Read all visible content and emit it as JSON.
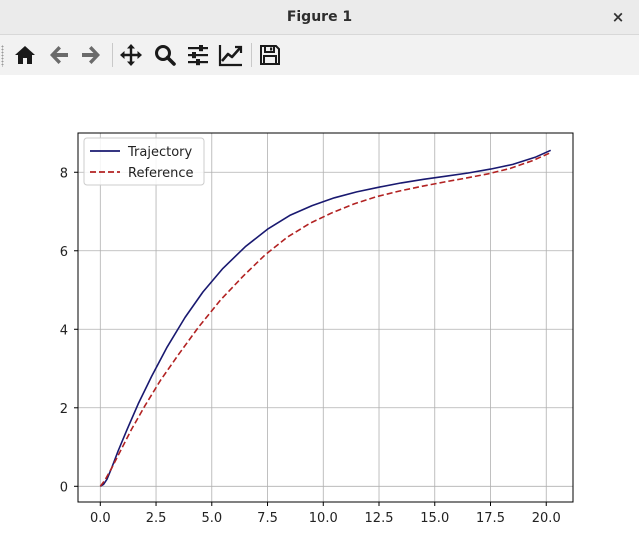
{
  "window": {
    "title": "Figure 1",
    "close_glyph": "×"
  },
  "toolbar": {
    "buttons": [
      {
        "name": "home",
        "icon": "home-icon"
      },
      {
        "name": "back",
        "icon": "arrow-left-icon"
      },
      {
        "name": "forward",
        "icon": "arrow-right-icon"
      },
      {
        "name": "pan",
        "icon": "move-icon"
      },
      {
        "name": "zoom",
        "icon": "magnifier-icon"
      },
      {
        "name": "configure-subplots",
        "icon": "sliders-icon"
      },
      {
        "name": "edit-axis",
        "icon": "line-chart-icon"
      },
      {
        "name": "save",
        "icon": "floppy-disk-icon"
      }
    ]
  },
  "chart_data": {
    "type": "line",
    "title": "",
    "xlabel": "",
    "ylabel": "",
    "xlim": [
      -1.0,
      21.2
    ],
    "ylim": [
      -0.4,
      9.0
    ],
    "xticks": [
      0.0,
      2.5,
      5.0,
      7.5,
      10.0,
      12.5,
      15.0,
      17.5,
      20.0
    ],
    "xtick_labels": [
      "0.0",
      "2.5",
      "5.0",
      "7.5",
      "10.0",
      "12.5",
      "15.0",
      "17.5",
      "20.0"
    ],
    "yticks": [
      0,
      2,
      4,
      6,
      8
    ],
    "ytick_labels": [
      "0",
      "2",
      "4",
      "6",
      "8"
    ],
    "grid": true,
    "legend": "upper-left",
    "series": [
      {
        "name": "Trajectory",
        "color": "#191970",
        "style": "solid",
        "x": [
          0.0,
          0.15,
          0.3,
          0.5,
          0.8,
          1.2,
          1.7,
          2.3,
          3.0,
          3.8,
          4.6,
          5.5,
          6.5,
          7.5,
          8.5,
          9.5,
          10.5,
          11.5,
          12.5,
          13.5,
          14.5,
          15.5,
          16.5,
          17.5,
          18.5,
          19.5,
          20.2
        ],
        "y": [
          0.0,
          0.05,
          0.18,
          0.45,
          0.9,
          1.45,
          2.1,
          2.8,
          3.55,
          4.3,
          4.95,
          5.55,
          6.1,
          6.55,
          6.9,
          7.15,
          7.35,
          7.5,
          7.62,
          7.73,
          7.82,
          7.9,
          7.98,
          8.08,
          8.2,
          8.38,
          8.56
        ]
      },
      {
        "name": "Reference",
        "color": "#b22222",
        "style": "dashed",
        "x": [
          0.0,
          0.2,
          0.5,
          0.9,
          1.4,
          2.0,
          2.7,
          3.5,
          4.4,
          5.4,
          6.4,
          7.4,
          8.4,
          9.4,
          10.4,
          11.4,
          12.4,
          13.4,
          14.4,
          15.4,
          16.4,
          17.4,
          18.4,
          19.4,
          20.2
        ],
        "y": [
          0.0,
          0.15,
          0.45,
          0.9,
          1.45,
          2.05,
          2.7,
          3.35,
          4.05,
          4.75,
          5.35,
          5.9,
          6.35,
          6.7,
          6.97,
          7.2,
          7.38,
          7.52,
          7.64,
          7.75,
          7.85,
          7.96,
          8.1,
          8.3,
          8.5
        ]
      }
    ]
  }
}
